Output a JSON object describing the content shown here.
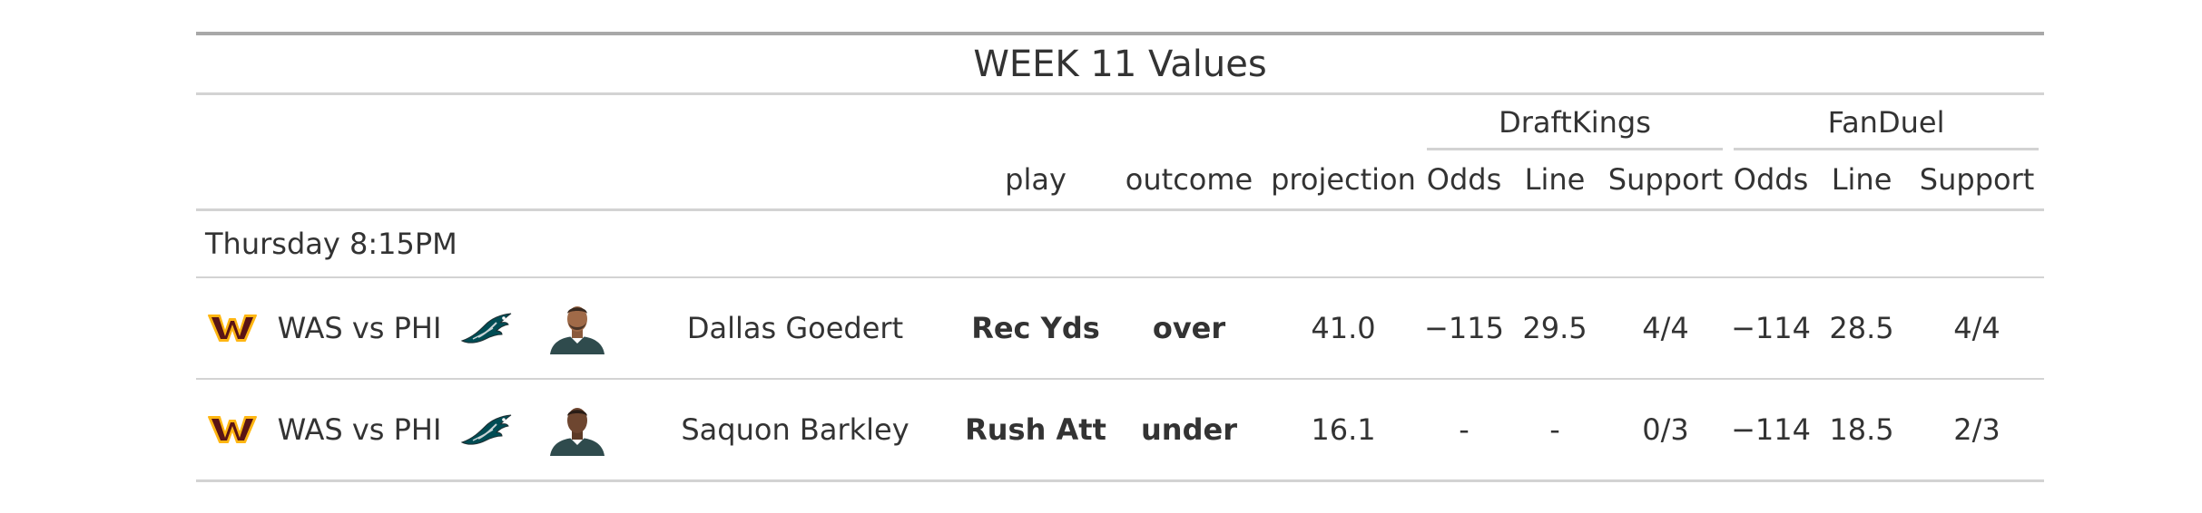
{
  "title": "WEEK 11 Values",
  "spanners": {
    "draftkings": "DraftKings",
    "fanduel": "FanDuel"
  },
  "columns": {
    "play": "play",
    "outcome": "outcome",
    "projection": "projection",
    "dk_odds": "Odds",
    "dk_line": "Line",
    "dk_support": "Support",
    "fd_odds": "Odds",
    "fd_line": "Line",
    "fd_support": "Support"
  },
  "group": {
    "label": "Thursday 8:15PM"
  },
  "rows": [
    {
      "team_logo": "commanders-logo",
      "matchup": "WAS vs PHI",
      "player_team_logo": "eagles-logo",
      "headshot": "player-headshot",
      "player": "Dallas Goedert",
      "play": "Rec Yds",
      "outcome": "over",
      "projection": "41.0",
      "dk_odds": "−115",
      "dk_line": "29.5",
      "dk_support": "4/4",
      "fd_odds": "−114",
      "fd_line": "28.5",
      "fd_support": "4/4"
    },
    {
      "team_logo": "commanders-logo",
      "matchup": "WAS vs PHI",
      "player_team_logo": "eagles-logo",
      "headshot": "player-headshot",
      "player": "Saquon Barkley",
      "play": "Rush Att",
      "outcome": "under",
      "projection": "16.1",
      "dk_odds": "-",
      "dk_line": "-",
      "dk_support": "0/3",
      "fd_odds": "−114",
      "fd_line": "18.5",
      "fd_support": "2/3"
    }
  ],
  "colors": {
    "text": "#333333",
    "rule_dark": "#a8a8a8",
    "rule_light": "#d3d3d3",
    "commanders_burgundy": "#5a1414",
    "commanders_gold": "#ffb612",
    "eagles_green": "#004c54",
    "eagles_jersey": "#2f4b4d"
  }
}
